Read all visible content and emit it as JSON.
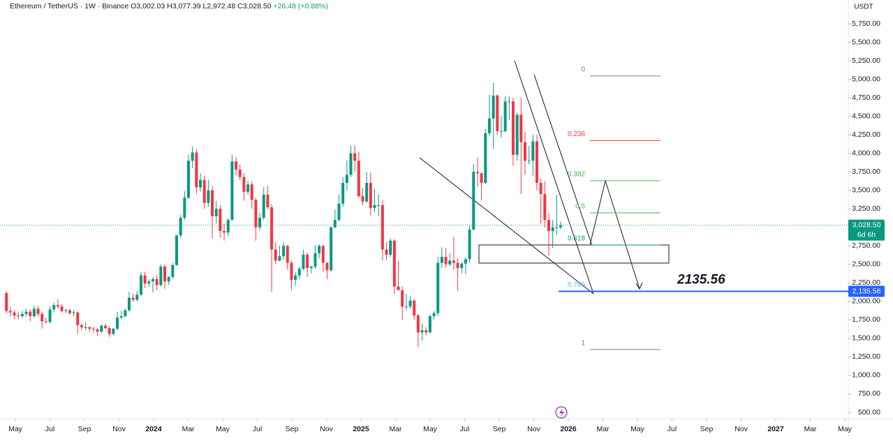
{
  "header": {
    "symbol": "Ethereum / TetherUS · 1W · Binance",
    "items": [
      "O3,002.03",
      "H3,077.39",
      "L2,972.48",
      "C3,028.50",
      "+26.48 (+0.88%)"
    ]
  },
  "chart_data": {
    "type": "candlestick",
    "unit": "USDT",
    "colors": {
      "up": "#089981",
      "down": "#f23645"
    },
    "candles": [
      [
        2110,
        2140,
        1840,
        1870
      ],
      [
        1870,
        1930,
        1800,
        1850
      ],
      [
        1850,
        1880,
        1760,
        1810
      ],
      [
        1810,
        1860,
        1760,
        1800
      ],
      [
        1800,
        1870,
        1770,
        1830
      ],
      [
        1830,
        1900,
        1800,
        1860
      ],
      [
        1860,
        1890,
        1730,
        1800
      ],
      [
        1800,
        1940,
        1780,
        1900
      ],
      [
        1900,
        1940,
        1800,
        1830
      ],
      [
        1830,
        1860,
        1630,
        1730
      ],
      [
        1730,
        1780,
        1700,
        1720
      ],
      [
        1720,
        1930,
        1700,
        1890
      ],
      [
        1890,
        1980,
        1850,
        1950
      ],
      [
        1950,
        2030,
        1900,
        1930
      ],
      [
        1930,
        1960,
        1850,
        1870
      ],
      [
        1870,
        1900,
        1840,
        1880
      ],
      [
        1880,
        1900,
        1820,
        1840
      ],
      [
        1840,
        1880,
        1800,
        1850
      ],
      [
        1850,
        1860,
        1560,
        1680
      ],
      [
        1680,
        1700,
        1610,
        1650
      ],
      [
        1650,
        1720,
        1610,
        1650
      ],
      [
        1650,
        1660,
        1590,
        1630
      ],
      [
        1630,
        1660,
        1580,
        1620
      ],
      [
        1620,
        1640,
        1530,
        1590
      ],
      [
        1590,
        1690,
        1570,
        1670
      ],
      [
        1670,
        1700,
        1620,
        1640
      ],
      [
        1640,
        1660,
        1520,
        1560
      ],
      [
        1560,
        1640,
        1540,
        1630
      ],
      [
        1630,
        1860,
        1610,
        1780
      ],
      [
        1780,
        1870,
        1760,
        1800
      ],
      [
        1800,
        1900,
        1780,
        1880
      ],
      [
        1880,
        2130,
        1860,
        2050
      ],
      [
        2050,
        2100,
        1990,
        2020
      ],
      [
        2020,
        2140,
        2000,
        2090
      ],
      [
        2090,
        2400,
        2070,
        2350
      ],
      [
        2350,
        2400,
        2180,
        2240
      ],
      [
        2240,
        2300,
        2200,
        2270
      ],
      [
        2270,
        2330,
        2120,
        2300
      ],
      [
        2300,
        2360,
        2150,
        2220
      ],
      [
        2220,
        2500,
        2200,
        2470
      ],
      [
        2470,
        2500,
        2170,
        2270
      ],
      [
        2270,
        2340,
        2220,
        2330
      ],
      [
        2330,
        2520,
        2300,
        2490
      ],
      [
        2490,
        2900,
        2480,
        2890
      ],
      [
        2890,
        3170,
        2860,
        3130
      ],
      [
        3130,
        3490,
        3100,
        3400
      ],
      [
        3400,
        3980,
        3380,
        3900
      ],
      [
        3900,
        4090,
        3800,
        4010
      ],
      [
        4010,
        4050,
        3450,
        3540
      ],
      [
        3540,
        3730,
        3480,
        3640
      ],
      [
        3640,
        3700,
        3250,
        3330
      ],
      [
        3330,
        3640,
        3280,
        3500
      ],
      [
        3500,
        3560,
        2850,
        3150
      ],
      [
        3150,
        3360,
        3050,
        3250
      ],
      [
        3250,
        3300,
        2860,
        2950
      ],
      [
        2950,
        3050,
        2820,
        2930
      ],
      [
        2930,
        3120,
        2880,
        3100
      ],
      [
        3100,
        3980,
        3090,
        3890
      ],
      [
        3890,
        3950,
        3700,
        3780
      ],
      [
        3780,
        3850,
        3640,
        3680
      ],
      [
        3680,
        3730,
        3360,
        3480
      ],
      [
        3480,
        3630,
        3440,
        3580
      ],
      [
        3580,
        3620,
        3250,
        3370
      ],
      [
        3370,
        3400,
        2820,
        3000
      ],
      [
        3000,
        3200,
        2960,
        3130
      ],
      [
        3130,
        3540,
        3100,
        3440
      ],
      [
        3440,
        3560,
        3240,
        3270
      ],
      [
        3270,
        3310,
        2130,
        2700
      ],
      [
        2700,
        2800,
        2500,
        2550
      ],
      [
        2550,
        2750,
        2540,
        2610
      ],
      [
        2610,
        2800,
        2560,
        2750
      ],
      [
        2750,
        2760,
        2430,
        2520
      ],
      [
        2520,
        2550,
        2150,
        2290
      ],
      [
        2290,
        2400,
        2210,
        2350
      ],
      [
        2350,
        2470,
        2300,
        2440
      ],
      [
        2440,
        2700,
        2420,
        2630
      ],
      [
        2630,
        2660,
        2330,
        2450
      ],
      [
        2450,
        2480,
        2380,
        2470
      ],
      [
        2470,
        2760,
        2440,
        2650
      ],
      [
        2650,
        2770,
        2580,
        2750
      ],
      [
        2750,
        2760,
        2400,
        2520
      ],
      [
        2520,
        2530,
        2300,
        2420
      ],
      [
        2420,
        3010,
        2400,
        3000
      ],
      [
        3000,
        3240,
        2990,
        3100
      ],
      [
        3100,
        3440,
        3080,
        3320
      ],
      [
        3320,
        3680,
        3280,
        3600
      ],
      [
        3600,
        3900,
        3500,
        3710
      ],
      [
        3710,
        4100,
        3680,
        4000
      ],
      [
        4000,
        4110,
        3750,
        3900
      ],
      [
        3900,
        4020,
        3400,
        3420
      ],
      [
        3420,
        3530,
        3300,
        3350
      ],
      [
        3350,
        3750,
        3330,
        3600
      ],
      [
        3600,
        3740,
        3160,
        3260
      ],
      [
        3260,
        3520,
        3200,
        3300
      ],
      [
        3300,
        3440,
        3150,
        3300
      ],
      [
        3300,
        3370,
        2550,
        2700
      ],
      [
        2700,
        2800,
        2560,
        2630
      ],
      [
        2630,
        2850,
        2600,
        2820
      ],
      [
        2820,
        2840,
        2100,
        2200
      ],
      [
        2200,
        2550,
        2150,
        2150
      ],
      [
        2150,
        2200,
        1750,
        1930
      ],
      [
        1930,
        2100,
        1880,
        1930
      ],
      [
        1930,
        2070,
        1900,
        2010
      ],
      [
        2010,
        2030,
        1750,
        1810
      ],
      [
        1810,
        1830,
        1385,
        1580
      ],
      [
        1580,
        1700,
        1470,
        1610
      ],
      [
        1610,
        1650,
        1540,
        1580
      ],
      [
        1580,
        1820,
        1570,
        1800
      ],
      [
        1800,
        1870,
        1750,
        1840
      ],
      [
        1840,
        2600,
        1800,
        2520
      ],
      [
        2520,
        2730,
        2450,
        2600
      ],
      [
        2600,
        2720,
        2450,
        2500
      ],
      [
        2500,
        2650,
        2480,
        2550
      ],
      [
        2550,
        2870,
        2430,
        2520
      ],
      [
        2520,
        2580,
        2150,
        2450
      ],
      [
        2450,
        2530,
        2380,
        2510
      ],
      [
        2510,
        2590,
        2370,
        2570
      ],
      [
        2570,
        3020,
        2520,
        2970
      ],
      [
        2970,
        3860,
        2960,
        3750
      ],
      [
        3750,
        3940,
        3550,
        3730
      ],
      [
        3730,
        3740,
        3360,
        3600
      ],
      [
        3600,
        4330,
        3580,
        4270
      ],
      [
        4270,
        4790,
        4230,
        4470
      ],
      [
        4470,
        4950,
        4060,
        4780
      ],
      [
        4780,
        4800,
        4250,
        4300
      ],
      [
        4300,
        4500,
        4210,
        4300
      ],
      [
        4300,
        4770,
        4280,
        4700
      ],
      [
        4700,
        4770,
        4450,
        4700
      ],
      [
        4700,
        4750,
        3830,
        3980
      ],
      [
        3980,
        4550,
        3900,
        4520
      ],
      [
        4520,
        4760,
        3450,
        4150
      ],
      [
        4150,
        4290,
        3710,
        3900
      ],
      [
        3900,
        4100,
        3850,
        3900
      ],
      [
        3900,
        4250,
        3700,
        4160
      ],
      [
        4160,
        4250,
        3500,
        3600
      ],
      [
        3600,
        3660,
        3050,
        3450
      ],
      [
        3450,
        3620,
        3000,
        3100
      ],
      [
        3100,
        3190,
        2620,
        2950
      ],
      [
        2950,
        3100,
        2720,
        3000
      ],
      [
        3000,
        3440,
        2900,
        3002.03
      ],
      [
        3002.03,
        3077.39,
        2972.48,
        3028.5
      ]
    ],
    "ylim": [
      415,
      6071
    ],
    "yticks": [
      {
        "value": 500,
        "label": "500.00"
      },
      {
        "value": 750,
        "label": "750.00"
      },
      {
        "value": 1000,
        "label": "1,000.00"
      },
      {
        "value": 1250,
        "label": "1,250.00"
      },
      {
        "value": 1500,
        "label": "1,500.00"
      },
      {
        "value": 1750,
        "label": "1,750.00"
      },
      {
        "value": 2000,
        "label": "2,000.00"
      },
      {
        "value": 2250,
        "label": "2,250.00"
      },
      {
        "value": 2500,
        "label": "2,500.00"
      },
      {
        "value": 2750,
        "label": "2,750.00"
      },
      {
        "value": 3000,
        "label": "3,000.00"
      },
      {
        "value": 3250,
        "label": "3,250.00"
      },
      {
        "value": 3500,
        "label": "3,500.00"
      },
      {
        "value": 3750,
        "label": "3,750.00"
      },
      {
        "value": 4000,
        "label": "4,000.00"
      },
      {
        "value": 4250,
        "label": "4,250.00"
      },
      {
        "value": 4500,
        "label": "4,500.00"
      },
      {
        "value": 4750,
        "label": "4,750.00"
      },
      {
        "value": 5000,
        "label": "5,000.00"
      },
      {
        "value": 5250,
        "label": "5,250.00"
      },
      {
        "value": 5500,
        "label": "5,500.00"
      },
      {
        "value": 5750,
        "label": "5,750.00"
      }
    ],
    "xticks": [
      {
        "value": "2023-05",
        "label": "May"
      },
      {
        "value": "2023-07",
        "label": "Jul"
      },
      {
        "value": "2023-09",
        "label": "Sep"
      },
      {
        "value": "2023-11",
        "label": "Nov"
      },
      {
        "value": "2024-01",
        "label": "2024"
      },
      {
        "value": "2024-03",
        "label": "Mar"
      },
      {
        "value": "2024-05",
        "label": "May"
      },
      {
        "value": "2024-07",
        "label": "Jul"
      },
      {
        "value": "2024-09",
        "label": "Sep"
      },
      {
        "value": "2024-11",
        "label": "Nov"
      },
      {
        "value": "2025-01",
        "label": "2025"
      },
      {
        "value": "2025-03",
        "label": "Mar"
      },
      {
        "value": "2025-05",
        "label": "May"
      },
      {
        "value": "2025-07",
        "label": "Jul"
      },
      {
        "value": "2025-09",
        "label": "Sep"
      },
      {
        "value": "2025-11",
        "label": "Nov"
      },
      {
        "value": "2026-01",
        "label": "2026"
      },
      {
        "value": "2026-03",
        "label": "Mar"
      },
      {
        "value": "2026-05",
        "label": "May"
      },
      {
        "value": "2026-07",
        "label": "Jul"
      },
      {
        "value": "2026-09",
        "label": "Sep"
      },
      {
        "value": "2026-11",
        "label": "Nov"
      },
      {
        "value": "2027-01",
        "label": "2027"
      },
      {
        "value": "2027-03",
        "label": "Mar"
      },
      {
        "value": "2027-05",
        "label": "May"
      }
    ],
    "last_price": {
      "value": 3028.5,
      "label": "3,028.50",
      "countdown": "6d 6h"
    },
    "target": {
      "value": 2135.56,
      "label": "2,135.56",
      "annotation": "2135.56"
    },
    "zone": [
      2517,
      2762
    ],
    "fib": [
      {
        "level": "0",
        "price": 5045,
        "color": "#787b86"
      },
      {
        "level": "0.236",
        "price": 4172,
        "color": "#f23645"
      },
      {
        "level": "0.382",
        "price": 3630,
        "color": "#4caf50"
      },
      {
        "level": "0.5",
        "price": 3196,
        "color": "#4caf50"
      },
      {
        "level": "0.618",
        "price": 2762,
        "color": "#089981"
      },
      {
        "level": "0.786",
        "price": 2137,
        "color": "#64b5f6"
      },
      {
        "level": "1",
        "price": 1350,
        "color": "#787b86"
      }
    ]
  }
}
